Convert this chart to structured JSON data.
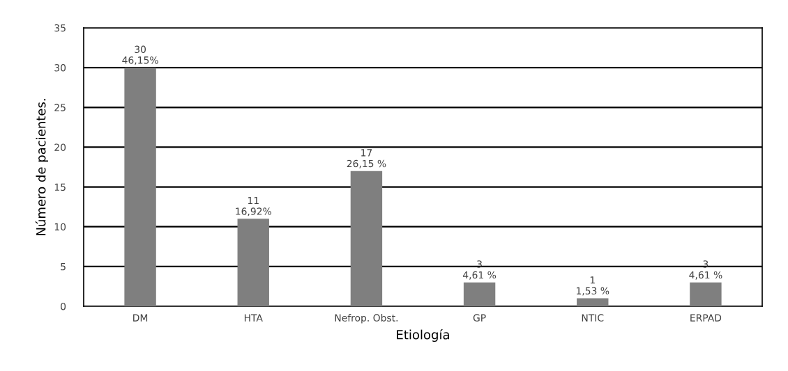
{
  "chart_data": {
    "type": "bar",
    "xlabel": "Etiología",
    "ylabel": "Número de pacientes.",
    "categories": [
      "DM",
      "HTA",
      "Nefrop. Obst.",
      "GP",
      "NTIC",
      "ERPAD"
    ],
    "values": [
      30,
      11,
      17,
      3,
      1,
      3
    ],
    "value_labels": [
      "30\n46,15%",
      "11\n16,92%",
      "17\n26,15 %",
      "3\n4,61 %",
      "1\n1,53 %",
      "3\n4,61 %"
    ],
    "color": "#7f7f7f",
    "ylim": [
      0,
      35
    ],
    "yticks": [
      0,
      5,
      10,
      15,
      20,
      25,
      30,
      35
    ],
    "grid": "y"
  }
}
